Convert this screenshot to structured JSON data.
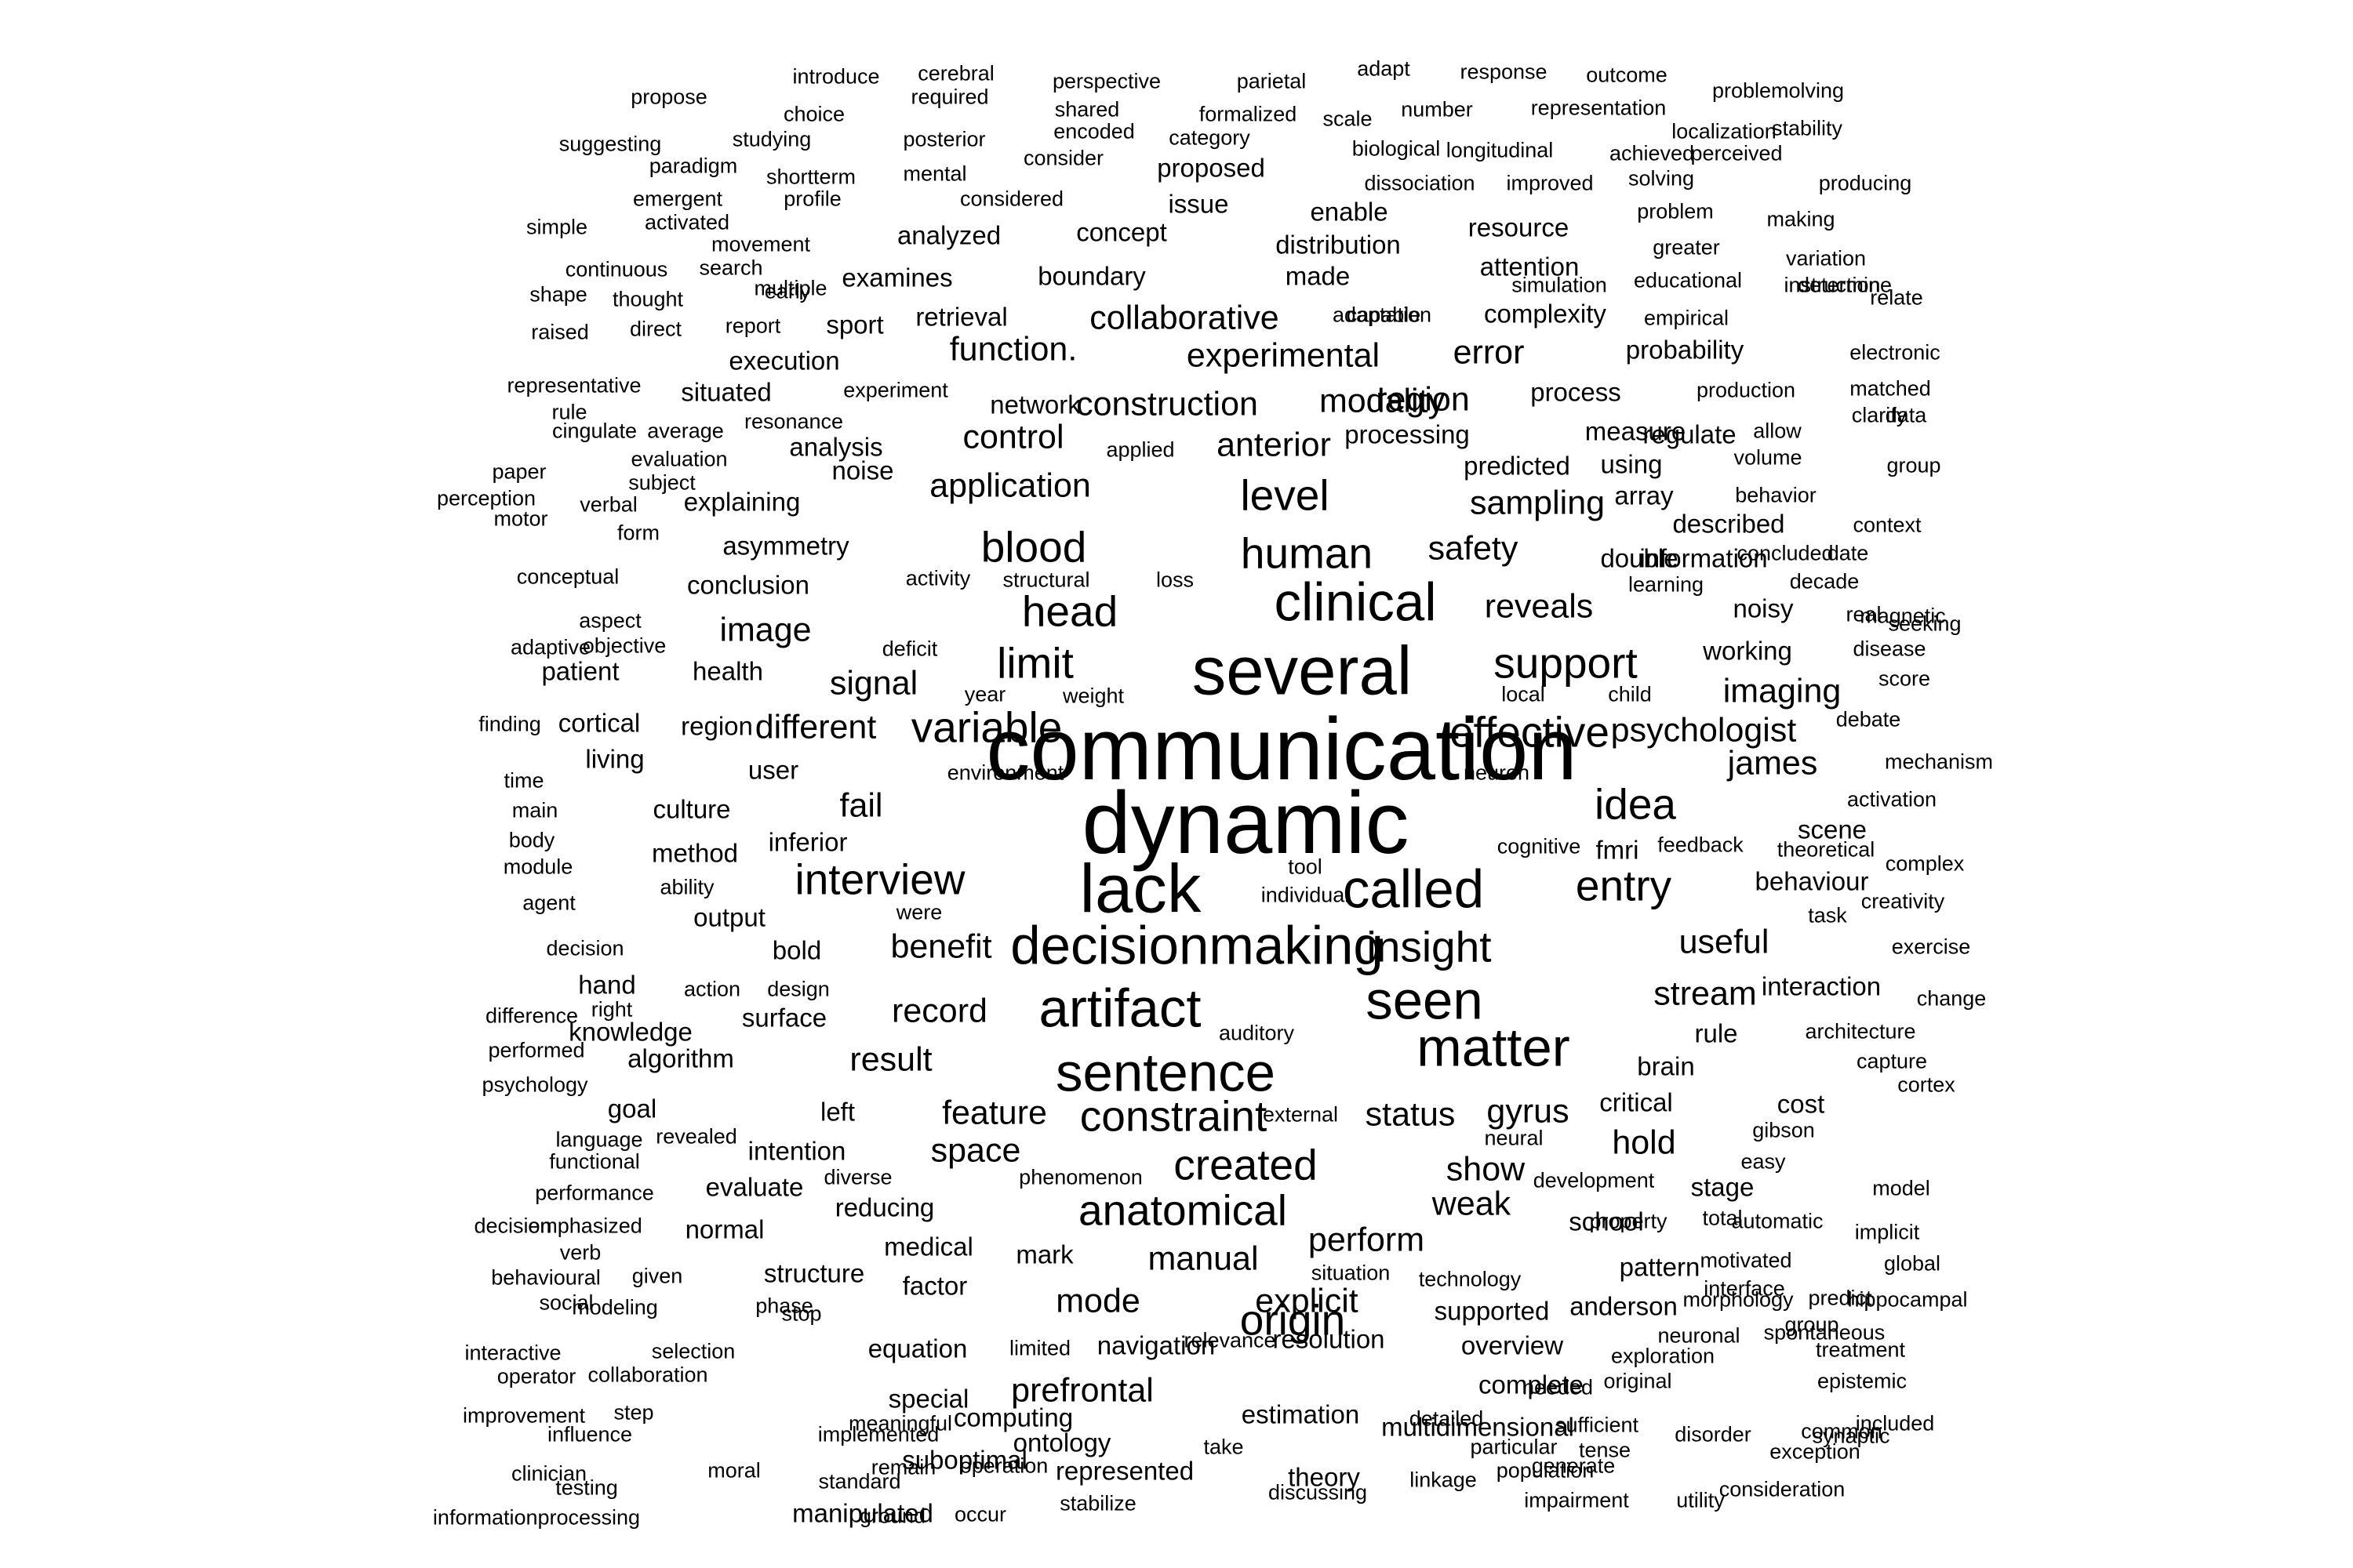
{
  "word_cloud": {
    "words": [
      "introduce",
      "cerebral",
      "perspective",
      "parietal",
      "adapt",
      "response",
      "outcome",
      "propose",
      "required",
      "shared",
      "formalized",
      "scale",
      "number",
      "representation",
      "problemolving",
      "choice",
      "encoded",
      "category",
      "biological",
      "longitudinal",
      "localization",
      "stability",
      "suggesting",
      "studying",
      "posterior",
      "consider",
      "proposed",
      "achieved",
      "perceived",
      "paradigm",
      "shortterm",
      "mental",
      "dissociation",
      "improved",
      "solving",
      "producing",
      "emergent",
      "profile",
      "considered",
      "issue",
      "problem",
      "making",
      "simple",
      "activated",
      "analyzed",
      "concept",
      "enable",
      "resource",
      "greater",
      "variation",
      "movement",
      "distribution",
      "attention",
      "educational",
      "determine",
      "continuous",
      "search",
      "multiple",
      "examines",
      "boundary",
      "made",
      "simulation",
      "relate",
      "shape",
      "thought",
      "early",
      "retrieval",
      "collaborative",
      "complexity",
      "empirical",
      "adaptation",
      "instruction",
      "raised",
      "direct",
      "report",
      "sport",
      "capable",
      "execution",
      "function.",
      "experimental",
      "error",
      "probability",
      "electronic",
      "representative",
      "situated",
      "experiment",
      "construction",
      "modality",
      "process",
      "production",
      "matched",
      "rule",
      "resonance",
      "network",
      "region",
      "regulate",
      "clarify",
      "cingulate",
      "average",
      "analysis",
      "control",
      "anterior",
      "processing",
      "measure",
      "allow",
      "data",
      "evaluation",
      "applied",
      "predicted",
      "using",
      "volume",
      "group",
      "paper",
      "subject",
      "noise",
      "application",
      "level",
      "perception",
      "verbal",
      "explaining",
      "sampling",
      "array",
      "behavior",
      "described",
      "context",
      "motor",
      "form",
      "asymmetry",
      "blood",
      "human",
      "safety",
      "double",
      "concluded",
      "date",
      "conceptual",
      "activity",
      "structural",
      "loss",
      "conclusion",
      "clinical",
      "information",
      "learning",
      "decade",
      "aspect",
      "head",
      "reveals",
      "noisy",
      "magnetic",
      "real",
      "seeking",
      "adaptive",
      "objective",
      "image",
      "deficit",
      "working",
      "disease",
      "patient",
      "health",
      "limit",
      "several",
      "support",
      "score",
      "signal",
      "year",
      "weight",
      "local",
      "child",
      "imaging",
      "finding",
      "cortical",
      "region",
      "different",
      "variable",
      "debate",
      "communication",
      "effective",
      "psychologist",
      "living",
      "user",
      "environment",
      "neuron",
      "james",
      "mechanism",
      "time",
      "dynamic",
      "activation",
      "main",
      "culture",
      "fail",
      "idea",
      "scene",
      "body",
      "inferior",
      "cognitive",
      "fmri",
      "feedback",
      "theoretical",
      "module",
      "method",
      "tool",
      "complex",
      "ability",
      "interview",
      "lack",
      "called",
      "entry",
      "behaviour",
      "agent",
      "individual",
      "task",
      "creativity",
      "output",
      "were",
      "decisionmaking",
      "insight",
      "decision",
      "bold",
      "benefit",
      "useful",
      "exercise",
      "hand",
      "action",
      "design",
      "interaction",
      "difference",
      "right",
      "record",
      "artifact",
      "seen",
      "stream",
      "change",
      "knowledge",
      "surface",
      "auditory",
      "performed",
      "result",
      "matter",
      "rule",
      "architecture",
      "algorithm",
      "capture",
      "psychology",
      "sentence",
      "brain",
      "cortex",
      "goal",
      "left",
      "feature",
      "constraint",
      "status",
      "gyrus",
      "critical",
      "cost",
      "language",
      "revealed",
      "external",
      "neural",
      "gibson",
      "functional",
      "intention",
      "space",
      "created",
      "show",
      "hold",
      "easy",
      "diverse",
      "phenomenon",
      "development",
      "stage",
      "model",
      "performance",
      "evaluate",
      "reducing",
      "anatomical",
      "weak",
      "school",
      "automatic",
      "decision",
      "emphasized",
      "normal",
      "property",
      "total",
      "verb",
      "medical",
      "perform",
      "implicit",
      "mark",
      "manual",
      "motivated",
      "global",
      "behavioural",
      "given",
      "structure",
      "factor",
      "situation",
      "technology",
      "pattern",
      "interface",
      "social",
      "phase",
      "mode",
      "explicit",
      "supported",
      "anderson",
      "morphology",
      "hippocampal",
      "modeling",
      "stop",
      "predict",
      "group",
      "interactive",
      "selection",
      "equation",
      "limited",
      "navigation",
      "relevance",
      "resolution",
      "overview",
      "neuronal",
      "spontaneous",
      "operator",
      "collaboration",
      "origin",
      "exploration",
      "treatment",
      "special",
      "prefrontal",
      "complete",
      "original",
      "epistemic",
      "improvement",
      "step",
      "estimation",
      "meaningful",
      "detailed",
      "particular",
      "needed",
      "sufficient",
      "common",
      "influence",
      "implemented",
      "computing",
      "ontology",
      "take",
      "theory",
      "multidimensional",
      "disorder",
      "included",
      "clinician",
      "moral",
      "remain",
      "suboptimal",
      "operation",
      "represented",
      "linkage",
      "impairment",
      "tense",
      "exception",
      "synaptic",
      "testing",
      "standard",
      "stabilize",
      "discussing",
      "population",
      "generate",
      "utility",
      "consideration",
      "informationprocessing",
      "manipulated",
      "ground",
      "occur"
    ]
  }
}
